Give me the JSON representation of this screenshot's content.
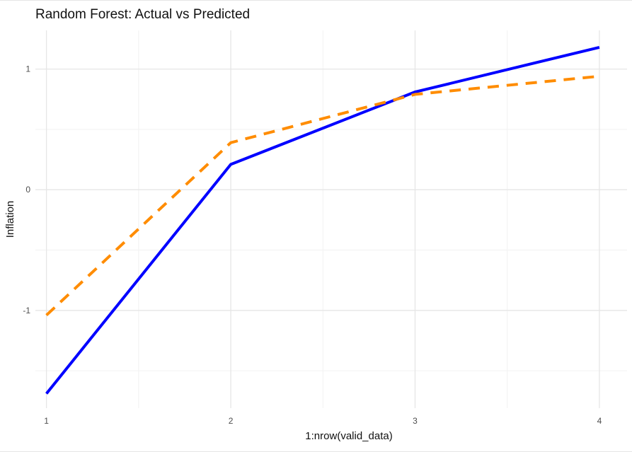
{
  "chart_data": {
    "type": "line",
    "title": "Random Forest: Actual vs Predicted",
    "xlabel": "1:nrow(valid_data)",
    "ylabel": "Inflation",
    "x": [
      1,
      2,
      3,
      4
    ],
    "xticks": [
      1,
      2,
      3,
      4
    ],
    "xtick_labels": [
      "1",
      "2",
      "3",
      "4"
    ],
    "yticks": [
      -1,
      0,
      1
    ],
    "ytick_labels": [
      "-1",
      "0",
      "1"
    ],
    "xlim": [
      0.94,
      4.15
    ],
    "ylim": [
      -1.81,
      1.32
    ],
    "grid": true,
    "legend": "none",
    "series": [
      {
        "values": [
          -1.69,
          0.21,
          0.81,
          1.18
        ],
        "color": "#0000ff",
        "style": "solid"
      },
      {
        "values": [
          -1.04,
          0.39,
          0.79,
          0.94
        ],
        "color": "#ff8c00",
        "style": "dashed"
      }
    ]
  }
}
